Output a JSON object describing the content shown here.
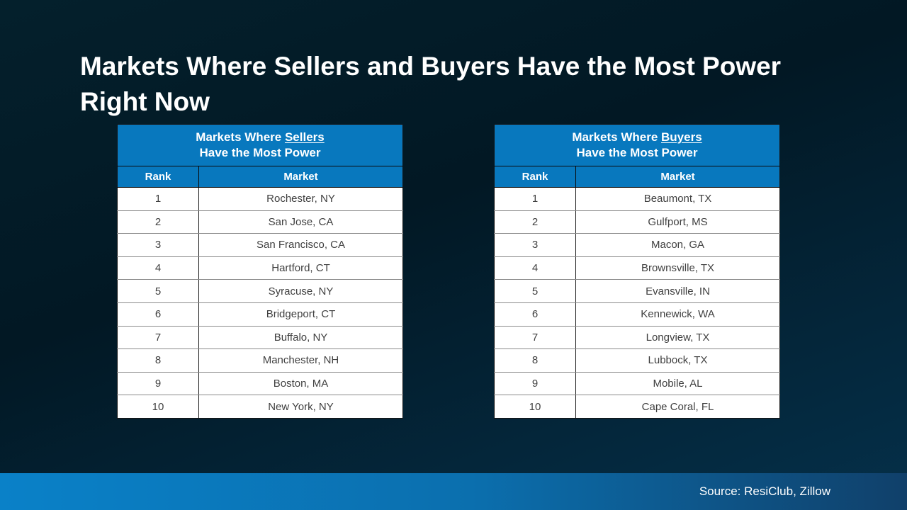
{
  "slide": {
    "title": "Markets Where Sellers and Buyers Have the Most Power Right Now",
    "source": "Source: ResiClub, Zillow"
  },
  "colors": {
    "background_top": "#04202c",
    "background_bottom": "#05304a",
    "table_header_blue": "#0878BE",
    "footer_gradient_left": "#0a81c8",
    "footer_gradient_right": "#10406a",
    "body_text": "#3f3f3f",
    "title_text": "#ffffff"
  },
  "tables": {
    "sellers": {
      "title_prefix": "Markets Where ",
      "title_emphasis": "Sellers",
      "title_line2": "Have the Most Power",
      "col_rank": "Rank",
      "col_market": "Market",
      "rows": [
        {
          "rank": "1",
          "market": "Rochester, NY"
        },
        {
          "rank": "2",
          "market": "San Jose, CA"
        },
        {
          "rank": "3",
          "market": "San Francisco, CA"
        },
        {
          "rank": "4",
          "market": "Hartford, CT"
        },
        {
          "rank": "5",
          "market": "Syracuse, NY"
        },
        {
          "rank": "6",
          "market": "Bridgeport, CT"
        },
        {
          "rank": "7",
          "market": "Buffalo, NY"
        },
        {
          "rank": "8",
          "market": "Manchester, NH"
        },
        {
          "rank": "9",
          "market": "Boston, MA"
        },
        {
          "rank": "10",
          "market": "New York, NY"
        }
      ]
    },
    "buyers": {
      "title_prefix": "Markets Where ",
      "title_emphasis": "Buyers",
      "title_line2": "Have the Most Power",
      "col_rank": "Rank",
      "col_market": "Market",
      "rows": [
        {
          "rank": "1",
          "market": "Beaumont, TX"
        },
        {
          "rank": "2",
          "market": "Gulfport, MS"
        },
        {
          "rank": "3",
          "market": "Macon, GA"
        },
        {
          "rank": "4",
          "market": "Brownsville, TX"
        },
        {
          "rank": "5",
          "market": "Evansville, IN"
        },
        {
          "rank": "6",
          "market": "Kennewick, WA"
        },
        {
          "rank": "7",
          "market": "Longview, TX"
        },
        {
          "rank": "8",
          "market": "Lubbock, TX"
        },
        {
          "rank": "9",
          "market": "Mobile, AL"
        },
        {
          "rank": "10",
          "market": "Cape Coral, FL"
        }
      ]
    }
  },
  "chart_data": [
    {
      "type": "table",
      "title": "Markets Where Sellers Have the Most Power",
      "columns": [
        "Rank",
        "Market"
      ],
      "rows": [
        [
          1,
          "Rochester, NY"
        ],
        [
          2,
          "San Jose, CA"
        ],
        [
          3,
          "San Francisco, CA"
        ],
        [
          4,
          "Hartford, CT"
        ],
        [
          5,
          "Syracuse, NY"
        ],
        [
          6,
          "Bridgeport, CT"
        ],
        [
          7,
          "Buffalo, NY"
        ],
        [
          8,
          "Manchester, NH"
        ],
        [
          9,
          "Boston, MA"
        ],
        [
          10,
          "New York, NY"
        ]
      ]
    },
    {
      "type": "table",
      "title": "Markets Where Buyers Have the Most Power",
      "columns": [
        "Rank",
        "Market"
      ],
      "rows": [
        [
          1,
          "Beaumont, TX"
        ],
        [
          2,
          "Gulfport, MS"
        ],
        [
          3,
          "Macon, GA"
        ],
        [
          4,
          "Brownsville, TX"
        ],
        [
          5,
          "Evansville, IN"
        ],
        [
          6,
          "Kennewick, WA"
        ],
        [
          7,
          "Longview, TX"
        ],
        [
          8,
          "Lubbock, TX"
        ],
        [
          9,
          "Mobile, AL"
        ],
        [
          10,
          "Cape Coral, FL"
        ]
      ]
    }
  ]
}
